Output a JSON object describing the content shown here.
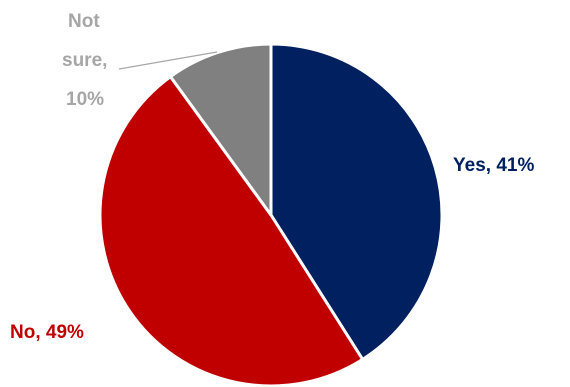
{
  "chart_data": {
    "type": "pie",
    "slices": [
      {
        "label": "Yes",
        "value": 41,
        "text": "Yes, 41%",
        "color": "#002060"
      },
      {
        "label": "No",
        "value": 49,
        "text": "No, 49%",
        "color": "#C00000"
      },
      {
        "label": "Not sure",
        "value": 10,
        "text_lines": [
          "Not",
          "sure,",
          "10%"
        ],
        "color": "#808080"
      }
    ],
    "start_angle_deg": 0,
    "direction": "clockwise",
    "legend": "none"
  }
}
